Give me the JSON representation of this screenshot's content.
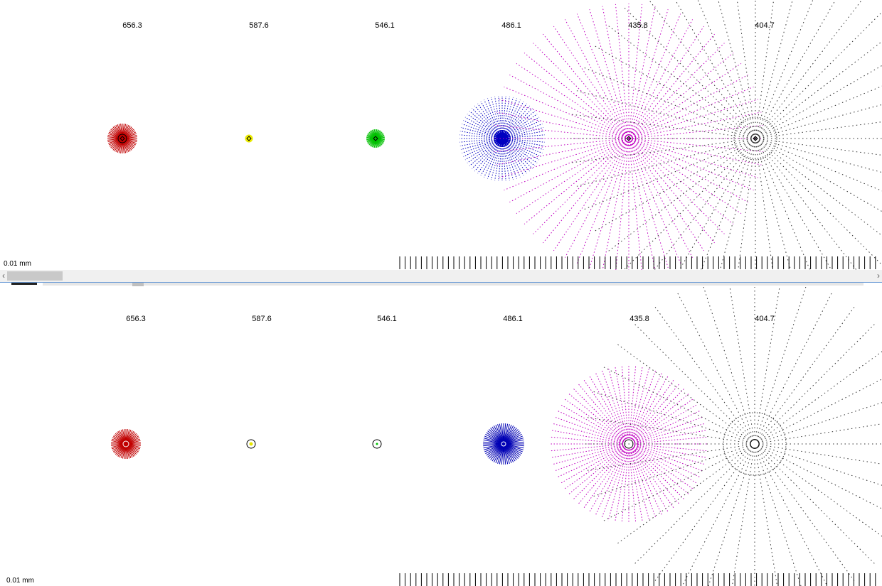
{
  "top_panel": {
    "wavelengths": [
      "656.3",
      "587.6",
      "546.1",
      "486.1",
      "435.8",
      "404.7"
    ],
    "scale_label": "0.01 mm",
    "spots": [
      {
        "wavelength": "656.3",
        "color": "#b40000",
        "radius_class": "small"
      },
      {
        "wavelength": "587.6",
        "color": "#e6e600",
        "radius_class": "tiny"
      },
      {
        "wavelength": "546.1",
        "color": "#00c000",
        "radius_class": "small"
      },
      {
        "wavelength": "486.1",
        "color": "#0000c8",
        "radius_class": "medium"
      },
      {
        "wavelength": "435.8",
        "color": "#c000c0",
        "radius_class": "large"
      },
      {
        "wavelength": "404.7",
        "color": "#303030",
        "radius_class": "xlarge"
      }
    ]
  },
  "bottom_panel": {
    "wavelengths": [
      "656.3",
      "587.6",
      "546.1",
      "486.1",
      "435.8",
      "404.7"
    ],
    "scale_label": "0.01 mm",
    "spots": [
      {
        "wavelength": "656.3",
        "color": "#c00000",
        "radius_class": "small"
      },
      {
        "wavelength": "587.6",
        "color": "#e6e600",
        "radius_class": "tiny"
      },
      {
        "wavelength": "546.1",
        "color": "#00c000",
        "radius_class": "tiny"
      },
      {
        "wavelength": "486.1",
        "color": "#0000b4",
        "radius_class": "small"
      },
      {
        "wavelength": "435.8",
        "color": "#c000c0",
        "radius_class": "large"
      },
      {
        "wavelength": "404.7",
        "color": "#303030",
        "radius_class": "xlarge"
      }
    ]
  },
  "colors": {
    "red": "#c00000",
    "yellow": "#e6e600",
    "green": "#00c000",
    "blue": "#0000c0",
    "magenta": "#c000c0",
    "dark": "#303030",
    "scrollbar_bg": "#f0f0f0",
    "scrollbar_thumb": "#c9c9c9",
    "splitter": "#6a9ad6"
  },
  "scrollbar": {
    "left_arrow": "‹",
    "right_arrow": "›"
  }
}
